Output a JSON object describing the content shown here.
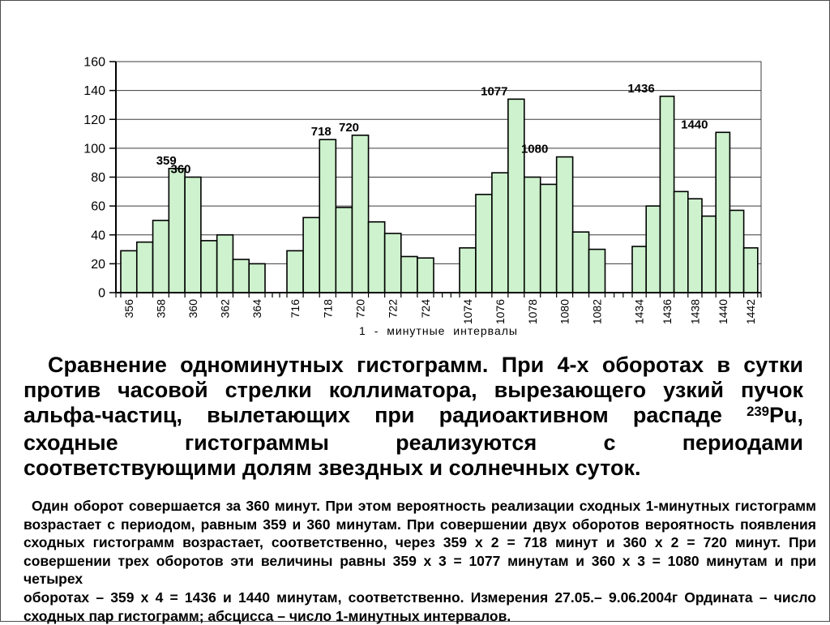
{
  "slide": {
    "caption": {
      "line1": "Сравнение одноминутных гистограмм.  При 4-х оборотах в сутки",
      "line2": "против часовой стрелки коллиматора, вырезающего узкий пучок",
      "line3_before": "альфа-частиц, вылетающих при радиоактивном распаде ",
      "line3_sup": "239",
      "line3_after": "Pu,",
      "line4": "сходные гистограммы реализуются с периодами",
      "line5": "соответствующими долям звездных и солнечных суток."
    },
    "details": {
      "line1": "Один оборот совершается за 360 минут. При этом вероятность реализации сходных 1-минутных гистограмм",
      "line2": "возрастает с периодом, равным 359 и 360 минутам. При совершении двух оборотов вероятность появления",
      "line3": "сходных гистограмм возрастает, соответственно, через 359 х 2 = 718 минут и 360 х 2 = 720 минут. При",
      "line4": "совершении трех оборотов  эти величины равны 359 х 3 = 1077 минутам и 360 х 3 = 1080 минутам и при четырех",
      "line5": "оборотах – 359 х 4 = 1436 и 1440 минутам, соответственно. Измерения 27.05.– 9.06.2004г Ордината – число",
      "line6": "сходных пар гистограмм; абсцисса – число 1-минутных интервалов."
    }
  },
  "chart_data": {
    "type": "bar",
    "title": "",
    "xlabel": "1 - минутные интервалы",
    "ylabel": "",
    "ylim": [
      0,
      160
    ],
    "ytick_step": 20,
    "grid": true,
    "bar_color": "#cdf2cd",
    "bar_border_color": "#000000",
    "clusters": [
      {
        "categories": [
          356,
          357,
          358,
          359,
          360,
          361,
          362,
          363,
          364
        ],
        "values": [
          29,
          35,
          50,
          86,
          80,
          36,
          40,
          23,
          20
        ]
      },
      {
        "categories": [
          716,
          717,
          718,
          719,
          720,
          721,
          722,
          723,
          724
        ],
        "values": [
          29,
          52,
          106,
          59,
          109,
          49,
          41,
          25,
          24
        ]
      },
      {
        "categories": [
          1074,
          1075,
          1076,
          1077,
          1078,
          1079,
          1080,
          1081,
          1082
        ],
        "values": [
          31,
          68,
          83,
          134,
          80,
          75,
          94,
          42,
          30
        ]
      },
      {
        "categories": [
          1434,
          1435,
          1436,
          1437,
          1438,
          1439,
          1440,
          1441,
          1442
        ],
        "values": [
          32,
          60,
          136,
          70,
          65,
          53,
          111,
          57,
          31
        ]
      }
    ],
    "xtick_labels": [
      "356",
      "358",
      "360",
      "362",
      "364",
      "716",
      "718",
      "720",
      "722",
      "724",
      "1074",
      "1076",
      "1078",
      "1080",
      "1082",
      "1434",
      "1436",
      "1438",
      "1440",
      "1442"
    ],
    "annotations": [
      {
        "label": "359",
        "cluster": 0,
        "bar": 3
      },
      {
        "label": "360",
        "cluster": 0,
        "bar": 4
      },
      {
        "label": "718",
        "cluster": 1,
        "bar": 2
      },
      {
        "label": "720",
        "cluster": 1,
        "bar": 4
      },
      {
        "label": "1077",
        "cluster": 2,
        "bar": 3
      },
      {
        "label": "1080",
        "cluster": 2,
        "bar": 6
      },
      {
        "label": "1436",
        "cluster": 3,
        "bar": 2
      },
      {
        "label": "1440",
        "cluster": 3,
        "bar": 6
      }
    ]
  }
}
